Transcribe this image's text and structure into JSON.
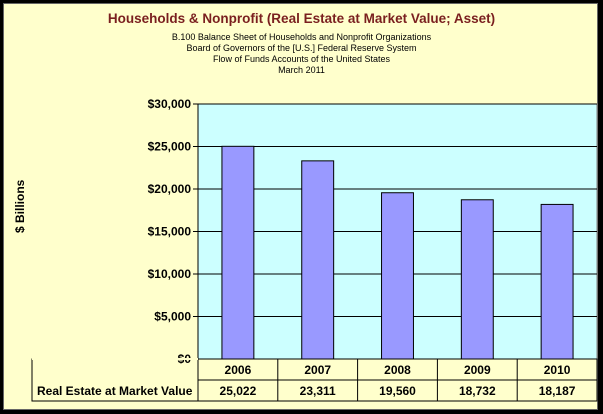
{
  "chart_data": {
    "type": "bar",
    "title": "Households & Nonprofit (Real Estate at Market Value; Asset)",
    "subtitles": [
      "B.100 Balance Sheet of Households and Nonprofit Organizations",
      "Board of Governors of the [U.S.] Federal Reserve System",
      "Flow of Funds Accounts of the United States",
      "March 2011"
    ],
    "xlabel": "",
    "ylabel": "$ Billions",
    "categories": [
      "2006",
      "2007",
      "2008",
      "2009",
      "2010"
    ],
    "series": [
      {
        "name": "Real Estate at Market Value",
        "values": [
          25022,
          23311,
          19560,
          18732,
          18187
        ],
        "labels": [
          "25,022",
          "23,311",
          "19,560",
          "18,732",
          "18,187"
        ],
        "color": "#9999FF"
      }
    ],
    "ylim": [
      0,
      30000
    ],
    "yticks": [
      0,
      5000,
      10000,
      15000,
      20000,
      25000,
      30000
    ],
    "ytick_labels": [
      "$0",
      "$5,000",
      "$10,000",
      "$15,000",
      "$20,000",
      "$25,000",
      "$30,000"
    ],
    "grid": true,
    "data_table": true,
    "colors": {
      "plot_background": "#CCFFFF",
      "chart_background": "#FFFFCC",
      "bar": "#9999FF",
      "title": "#7A1F1F"
    }
  }
}
